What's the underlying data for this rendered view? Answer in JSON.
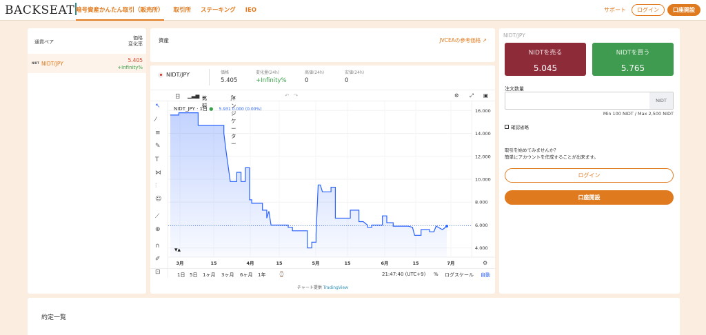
{
  "header": {
    "logo": "BACKSEAT",
    "nav": [
      "暗号資産かんたん取引（販売所）",
      "取引所",
      "ステーキング",
      "IEO"
    ],
    "support": "サポート",
    "login": "ログイン",
    "open_account": "口座開設"
  },
  "pairs": {
    "col_pair": "通貨ペア",
    "col_price": "価格",
    "col_change": "変化率",
    "rows": [
      {
        "logo": "NIDT",
        "name": "NIDT/JPY",
        "price": "5.405",
        "change": "+Infinity%"
      }
    ]
  },
  "assets": {
    "title": "資産",
    "link": "JVCEAの参考価格"
  },
  "ticker": {
    "logo": "NIDT",
    "pair": "NIDT/JPY",
    "price_label": "価格",
    "price": "5.405",
    "change_label": "変化量(24h)",
    "change": "+Infinity%",
    "high_label": "高値(24h)",
    "high": "0",
    "low_label": "安値(24h)",
    "low": "0"
  },
  "toolbar": {
    "interval": "日",
    "compare": "比較",
    "indicator": "インジケーター"
  },
  "chart_header": {
    "symbol": "NIDT_JPY",
    "interval": "1日",
    "ohlc": "5.931  0.000 (0.00%)"
  },
  "chart_data": {
    "type": "line",
    "title": "",
    "x_ticks": [
      "3月",
      "15",
      "4月",
      "15",
      "5月",
      "15",
      "6月",
      "15",
      "7月"
    ],
    "y_ticks": [
      "16.000",
      "14.000",
      "12.000",
      "10.000",
      "8.000",
      "6.000",
      "4.000"
    ],
    "ylim": [
      3.2,
      16.8
    ],
    "last_value": 5.931,
    "series": [
      {
        "x": [
          0,
          4,
          4,
          13,
          13,
          25,
          25,
          26,
          28,
          31,
          31,
          33,
          33,
          35,
          35,
          37,
          37,
          38,
          38,
          43,
          43,
          45,
          45,
          46,
          47,
          55,
          55,
          57,
          57,
          64,
          64,
          66,
          66,
          68,
          68,
          69,
          70,
          71,
          75,
          75,
          77,
          77,
          84,
          84,
          88,
          88,
          90,
          92,
          92,
          94,
          94,
          99,
          99,
          101,
          101,
          104,
          104,
          108,
          108,
          111,
          113,
          114,
          117,
          117,
          121,
          121,
          123,
          124,
          127,
          129
        ],
        "y": [
          15.6,
          15.6,
          15.8,
          15.8,
          14.7,
          14.7,
          14.0,
          12.5,
          9.8,
          9.8,
          10.6,
          10.6,
          9.8,
          9.8,
          11.0,
          11.0,
          8.2,
          8.2,
          7.9,
          7.9,
          7.3,
          7.3,
          6.6,
          7.2,
          6.0,
          6.0,
          5.8,
          5.8,
          5.5,
          5.5,
          4.0,
          4.0,
          4.5,
          4.5,
          5.2,
          9.5,
          9.5,
          8.9,
          8.9,
          9.3,
          9.3,
          6.6,
          6.6,
          7.3,
          7.3,
          6.3,
          6.3,
          6.0,
          5.8,
          5.8,
          6.0,
          6.0,
          6.8,
          6.8,
          6.2,
          6.2,
          5.9,
          5.9,
          5.9,
          5.9,
          5.8,
          5.1,
          5.1,
          5.6,
          5.6,
          5.4,
          5.4,
          5.9,
          5.6,
          5.9
        ]
      }
    ]
  },
  "bottombar": {
    "ranges": [
      "1日",
      "5日",
      "1ヶ月",
      "3ヶ月",
      "6ヶ月",
      "1年"
    ],
    "time": "21:47:40 (UTC+9)",
    "percent": "%",
    "log": "ログスケール",
    "auto": "自動"
  },
  "credit": {
    "text": "チャート提供",
    "provider": "TradingView"
  },
  "trade": {
    "pair": "NIDT/JPY",
    "sell_label": "NIDTを売る",
    "sell_price": "5.045",
    "buy_label": "NIDTを買う",
    "buy_price": "5.765",
    "qty_label": "注文数量",
    "unit": "NIDT",
    "minmax": "Min 100 NIDT / Max 2,500 NIDT",
    "confirm": "確認省略",
    "promo1": "取引を始めてみませんか？",
    "promo2": "簡単にアカウントを作成することが出来ます。",
    "login": "ログイン",
    "open": "口座開設"
  },
  "orders": {
    "title": "約定一覧"
  },
  "colors": {
    "accent": "#e07a1f",
    "sell": "#8e2b39",
    "buy": "#3f9b4f",
    "line": "#2962ff"
  }
}
